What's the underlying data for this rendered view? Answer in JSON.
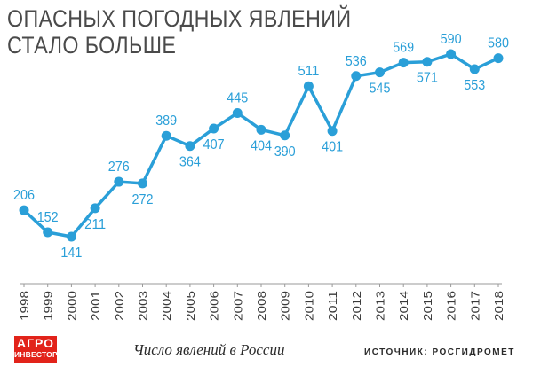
{
  "header": {
    "title_line1": "ОПАСНЫХ ПОГОДНЫХ ЯВЛЕНИЙ",
    "title_line2": "СТАЛО БОЛЬШЕ"
  },
  "logo": {
    "line1": "АГРО",
    "line2": "ИНВЕСТОР"
  },
  "caption": "Число явлений в России",
  "source": "ИСТОЧНИК: РОСГИДРОМЕТ",
  "colors": {
    "series": "#2a9fd8",
    "axis": "#9a9a9a",
    "text": "#3a3a3a",
    "logo": "#e2231a"
  },
  "chart_data": {
    "type": "line",
    "x": [
      "1998",
      "1999",
      "2000",
      "2001",
      "2002",
      "2003",
      "2004",
      "2005",
      "2006",
      "2007",
      "2008",
      "2009",
      "2010",
      "2011",
      "2012",
      "2013",
      "2014",
      "2015",
      "2016",
      "2017",
      "2018"
    ],
    "values": [
      206,
      152,
      141,
      211,
      276,
      272,
      389,
      364,
      407,
      445,
      404,
      390,
      511,
      401,
      536,
      545,
      569,
      571,
      590,
      553,
      580
    ],
    "label_position": [
      "above",
      "above",
      "below",
      "below",
      "above",
      "below",
      "above",
      "below",
      "below",
      "above",
      "below",
      "below",
      "above",
      "below",
      "above",
      "below",
      "above",
      "below",
      "above",
      "below",
      "above"
    ],
    "title": "ОПАСНЫХ ПОГОДНЫХ ЯВЛЕНИЙ СТАЛО БОЛЬШЕ",
    "xlabel": "",
    "ylabel": "",
    "grid": false,
    "legend": "none"
  }
}
